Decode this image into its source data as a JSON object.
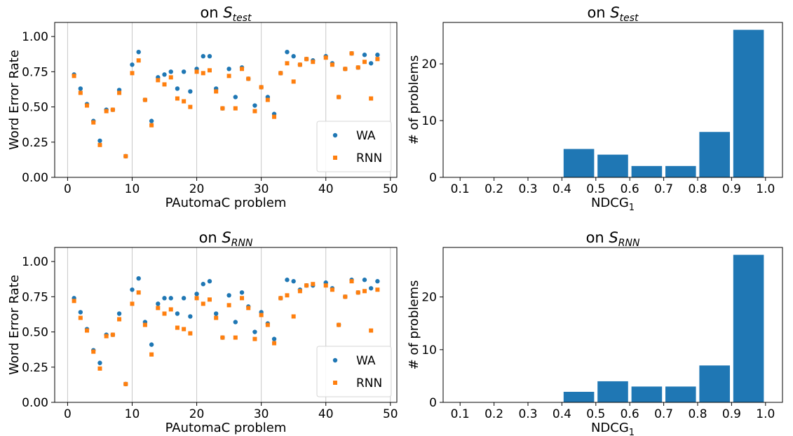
{
  "chart_data": [
    {
      "type": "scatter",
      "title_prefix": "on ",
      "title_symbol": "S",
      "title_subscript": "test",
      "xlabel": "PAutomaC problem",
      "ylabel": "Word Error Rate",
      "xlim": [
        -2,
        51
      ],
      "ylim": [
        0,
        1.1
      ],
      "xticks": [
        0,
        10,
        20,
        30,
        40,
        50
      ],
      "yticks": [
        0.0,
        0.25,
        0.5,
        0.75,
        1.0
      ],
      "xtick_labels": [
        "0",
        "10",
        "20",
        "30",
        "40",
        "50"
      ],
      "ytick_labels": [
        "0.00",
        "0.25",
        "0.50",
        "0.75",
        "1.00"
      ],
      "grid": "x",
      "legend": "lower-right",
      "series": [
        {
          "name": "WA",
          "color": "#1f77b4",
          "marker": "circle",
          "points": [
            [
              1,
              0.73
            ],
            [
              2,
              0.63
            ],
            [
              3,
              0.52
            ],
            [
              4,
              0.4
            ],
            [
              5,
              0.26
            ],
            [
              6,
              0.48
            ],
            [
              7,
              0.48
            ],
            [
              8,
              0.62
            ],
            [
              9,
              0.15
            ],
            [
              10,
              0.8
            ],
            [
              11,
              0.89
            ],
            [
              12,
              0.55
            ],
            [
              13,
              0.4
            ],
            [
              14,
              0.71
            ],
            [
              15,
              0.73
            ],
            [
              16,
              0.75
            ],
            [
              17,
              0.63
            ],
            [
              18,
              0.75
            ],
            [
              19,
              0.61
            ],
            [
              20,
              0.77
            ],
            [
              21,
              0.86
            ],
            [
              22,
              0.86
            ],
            [
              23,
              0.63
            ],
            [
              24,
              0.49
            ],
            [
              25,
              0.77
            ],
            [
              26,
              0.57
            ],
            [
              27,
              0.78
            ],
            [
              28,
              0.7
            ],
            [
              29,
              0.51
            ],
            [
              30,
              0.64
            ],
            [
              31,
              0.57
            ],
            [
              32,
              0.45
            ],
            [
              33,
              0.74
            ],
            [
              34,
              0.89
            ],
            [
              35,
              0.86
            ],
            [
              36,
              0.8
            ],
            [
              37,
              0.84
            ],
            [
              38,
              0.83
            ],
            [
              40,
              0.86
            ],
            [
              41,
              0.81
            ],
            [
              42,
              0.57
            ],
            [
              43,
              0.77
            ],
            [
              44,
              0.88
            ],
            [
              45,
              0.78
            ],
            [
              46,
              0.87
            ],
            [
              47,
              0.81
            ],
            [
              48,
              0.87
            ]
          ]
        },
        {
          "name": "RNN",
          "color": "#ff7f0e",
          "marker": "square",
          "points": [
            [
              1,
              0.72
            ],
            [
              2,
              0.6
            ],
            [
              3,
              0.51
            ],
            [
              4,
              0.39
            ],
            [
              5,
              0.23
            ],
            [
              6,
              0.47
            ],
            [
              7,
              0.48
            ],
            [
              8,
              0.6
            ],
            [
              9,
              0.15
            ],
            [
              10,
              0.74
            ],
            [
              11,
              0.83
            ],
            [
              12,
              0.55
            ],
            [
              13,
              0.37
            ],
            [
              14,
              0.69
            ],
            [
              15,
              0.66
            ],
            [
              16,
              0.71
            ],
            [
              17,
              0.56
            ],
            [
              18,
              0.54
            ],
            [
              19,
              0.5
            ],
            [
              20,
              0.75
            ],
            [
              21,
              0.74
            ],
            [
              22,
              0.76
            ],
            [
              23,
              0.61
            ],
            [
              24,
              0.49
            ],
            [
              25,
              0.72
            ],
            [
              26,
              0.49
            ],
            [
              27,
              0.77
            ],
            [
              28,
              0.7
            ],
            [
              29,
              0.47
            ],
            [
              30,
              0.64
            ],
            [
              31,
              0.55
            ],
            [
              32,
              0.43
            ],
            [
              33,
              0.74
            ],
            [
              34,
              0.81
            ],
            [
              35,
              0.68
            ],
            [
              36,
              0.8
            ],
            [
              37,
              0.84
            ],
            [
              38,
              0.82
            ],
            [
              40,
              0.85
            ],
            [
              41,
              0.8
            ],
            [
              42,
              0.57
            ],
            [
              43,
              0.77
            ],
            [
              44,
              0.88
            ],
            [
              45,
              0.78
            ],
            [
              46,
              0.82
            ],
            [
              47,
              0.56
            ],
            [
              48,
              0.84
            ]
          ]
        }
      ]
    },
    {
      "type": "bar",
      "title_prefix": "on ",
      "title_symbol": "S",
      "title_subscript": "test",
      "xlabel_main": "NDCG",
      "xlabel_subscript": "1",
      "ylabel": "# of problems",
      "xlim": [
        0.05,
        1.05
      ],
      "ylim": [
        0,
        27.3
      ],
      "xticks": [
        0.1,
        0.2,
        0.3,
        0.4,
        0.5,
        0.6,
        0.7,
        0.8,
        0.9,
        1.0
      ],
      "xtick_labels": [
        "0.1",
        "0.2",
        "0.3",
        "0.4",
        "0.5",
        "0.6",
        "0.7",
        "0.8",
        "0.9",
        "1.0"
      ],
      "yticks": [
        0,
        10,
        20
      ],
      "ytick_labels": [
        "0",
        "10",
        "20"
      ],
      "bin_edges": [
        0.1,
        0.2,
        0.3,
        0.4,
        0.5,
        0.6,
        0.7,
        0.8,
        0.9,
        1.0
      ],
      "values": [
        0,
        0,
        0,
        5,
        4,
        2,
        2,
        8,
        26
      ],
      "color": "#1f77b4"
    },
    {
      "type": "scatter",
      "title_prefix": "on ",
      "title_symbol": "S",
      "title_subscript": "RNN",
      "xlabel": "PAutomaC problem",
      "ylabel": "Word Error Rate",
      "xlim": [
        -2,
        51
      ],
      "ylim": [
        0,
        1.1
      ],
      "xticks": [
        0,
        10,
        20,
        30,
        40,
        50
      ],
      "yticks": [
        0.0,
        0.25,
        0.5,
        0.75,
        1.0
      ],
      "xtick_labels": [
        "0",
        "10",
        "20",
        "30",
        "40",
        "50"
      ],
      "ytick_labels": [
        "0.00",
        "0.25",
        "0.50",
        "0.75",
        "1.00"
      ],
      "grid": "x",
      "legend": "lower-right",
      "series": [
        {
          "name": "WA",
          "color": "#1f77b4",
          "marker": "circle",
          "points": [
            [
              1,
              0.74
            ],
            [
              2,
              0.64
            ],
            [
              3,
              0.52
            ],
            [
              4,
              0.37
            ],
            [
              5,
              0.28
            ],
            [
              6,
              0.48
            ],
            [
              7,
              0.48
            ],
            [
              8,
              0.63
            ],
            [
              9,
              0.13
            ],
            [
              10,
              0.8
            ],
            [
              11,
              0.88
            ],
            [
              12,
              0.57
            ],
            [
              13,
              0.41
            ],
            [
              14,
              0.7
            ],
            [
              15,
              0.74
            ],
            [
              16,
              0.74
            ],
            [
              17,
              0.63
            ],
            [
              18,
              0.74
            ],
            [
              19,
              0.61
            ],
            [
              20,
              0.77
            ],
            [
              21,
              0.84
            ],
            [
              22,
              0.86
            ],
            [
              23,
              0.63
            ],
            [
              24,
              0.46
            ],
            [
              25,
              0.76
            ],
            [
              26,
              0.57
            ],
            [
              27,
              0.78
            ],
            [
              28,
              0.68
            ],
            [
              29,
              0.5
            ],
            [
              30,
              0.64
            ],
            [
              31,
              0.56
            ],
            [
              32,
              0.45
            ],
            [
              33,
              0.74
            ],
            [
              34,
              0.87
            ],
            [
              35,
              0.86
            ],
            [
              36,
              0.8
            ],
            [
              37,
              0.83
            ],
            [
              38,
              0.83
            ],
            [
              40,
              0.85
            ],
            [
              41,
              0.81
            ],
            [
              42,
              0.55
            ],
            [
              43,
              0.75
            ],
            [
              44,
              0.87
            ],
            [
              45,
              0.78
            ],
            [
              46,
              0.87
            ],
            [
              47,
              0.81
            ],
            [
              48,
              0.86
            ]
          ]
        },
        {
          "name": "RNN",
          "color": "#ff7f0e",
          "marker": "square",
          "points": [
            [
              1,
              0.72
            ],
            [
              2,
              0.6
            ],
            [
              3,
              0.51
            ],
            [
              4,
              0.36
            ],
            [
              5,
              0.24
            ],
            [
              6,
              0.47
            ],
            [
              7,
              0.48
            ],
            [
              8,
              0.59
            ],
            [
              9,
              0.13
            ],
            [
              10,
              0.7
            ],
            [
              11,
              0.78
            ],
            [
              12,
              0.55
            ],
            [
              13,
              0.34
            ],
            [
              14,
              0.67
            ],
            [
              15,
              0.63
            ],
            [
              16,
              0.66
            ],
            [
              17,
              0.53
            ],
            [
              18,
              0.52
            ],
            [
              19,
              0.49
            ],
            [
              20,
              0.74
            ],
            [
              21,
              0.7
            ],
            [
              22,
              0.73
            ],
            [
              23,
              0.6
            ],
            [
              24,
              0.46
            ],
            [
              25,
              0.69
            ],
            [
              26,
              0.46
            ],
            [
              27,
              0.74
            ],
            [
              28,
              0.67
            ],
            [
              29,
              0.45
            ],
            [
              30,
              0.62
            ],
            [
              31,
              0.55
            ],
            [
              32,
              0.42
            ],
            [
              33,
              0.74
            ],
            [
              34,
              0.76
            ],
            [
              35,
              0.61
            ],
            [
              36,
              0.79
            ],
            [
              37,
              0.83
            ],
            [
              38,
              0.84
            ],
            [
              40,
              0.83
            ],
            [
              41,
              0.8
            ],
            [
              42,
              0.55
            ],
            [
              43,
              0.75
            ],
            [
              44,
              0.86
            ],
            [
              45,
              0.78
            ],
            [
              46,
              0.79
            ],
            [
              47,
              0.51
            ],
            [
              48,
              0.8
            ]
          ]
        }
      ]
    },
    {
      "type": "bar",
      "title_prefix": "on ",
      "title_symbol": "S",
      "title_subscript": "RNN",
      "xlabel_main": "NDCG",
      "xlabel_subscript": "1",
      "ylabel": "# of problems",
      "xlim": [
        0.05,
        1.05
      ],
      "ylim": [
        0,
        29.4
      ],
      "xticks": [
        0.1,
        0.2,
        0.3,
        0.4,
        0.5,
        0.6,
        0.7,
        0.8,
        0.9,
        1.0
      ],
      "xtick_labels": [
        "0.1",
        "0.2",
        "0.3",
        "0.4",
        "0.5",
        "0.6",
        "0.7",
        "0.8",
        "0.9",
        "1.0"
      ],
      "yticks": [
        0,
        10,
        20
      ],
      "ytick_labels": [
        "0",
        "10",
        "20"
      ],
      "bin_edges": [
        0.1,
        0.2,
        0.3,
        0.4,
        0.5,
        0.6,
        0.7,
        0.8,
        0.9,
        1.0
      ],
      "values": [
        0,
        0,
        0,
        2,
        4,
        3,
        3,
        7,
        28
      ],
      "color": "#1f77b4"
    }
  ]
}
